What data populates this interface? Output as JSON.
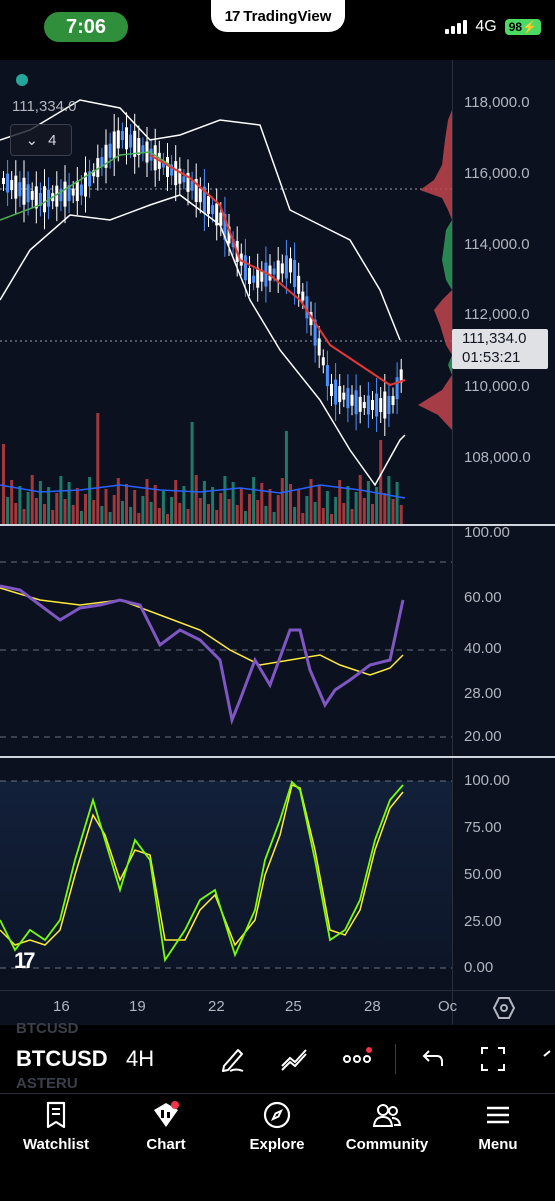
{
  "status": {
    "time": "7:06",
    "network": "4G",
    "battery": "98"
  },
  "app": {
    "brand": "TradingView"
  },
  "chart": {
    "last_value": "111,334.0",
    "collapse_count": "4",
    "price_tag": {
      "price": "111,334.0",
      "countdown": "01:53:21"
    },
    "price_axis": [
      "118,000.0",
      "116,000.0",
      "114,000.0",
      "112,000.0",
      "110,000.0",
      "108,000.0"
    ],
    "rsi_axis": [
      "100.00",
      "60.00",
      "40.00",
      "28.00",
      "20.00"
    ],
    "stoch_axis": [
      "100.00",
      "75.00",
      "50.00",
      "25.00",
      "0.00"
    ],
    "date_axis": [
      "16",
      "19",
      "22",
      "25",
      "28",
      "Oc"
    ]
  },
  "toolbar": {
    "ghost_top": "BTCUSD",
    "ghost_bottom": "ASTERU",
    "symbol": "BTCUSD",
    "interval": "4H"
  },
  "tabs": [
    {
      "label": "Watchlist",
      "icon": "bookmark-icon"
    },
    {
      "label": "Chart",
      "icon": "chart-icon"
    },
    {
      "label": "Explore",
      "icon": "compass-icon"
    },
    {
      "label": "Community",
      "icon": "users-icon"
    },
    {
      "label": "Menu",
      "icon": "menu-icon"
    }
  ],
  "colors": {
    "bull": "#26a69a",
    "bear": "#ef5350",
    "rsi": "#7e57c2",
    "accent_green": "#2f8f3b",
    "band": "#ffffff",
    "ma_red": "#e53935"
  }
}
